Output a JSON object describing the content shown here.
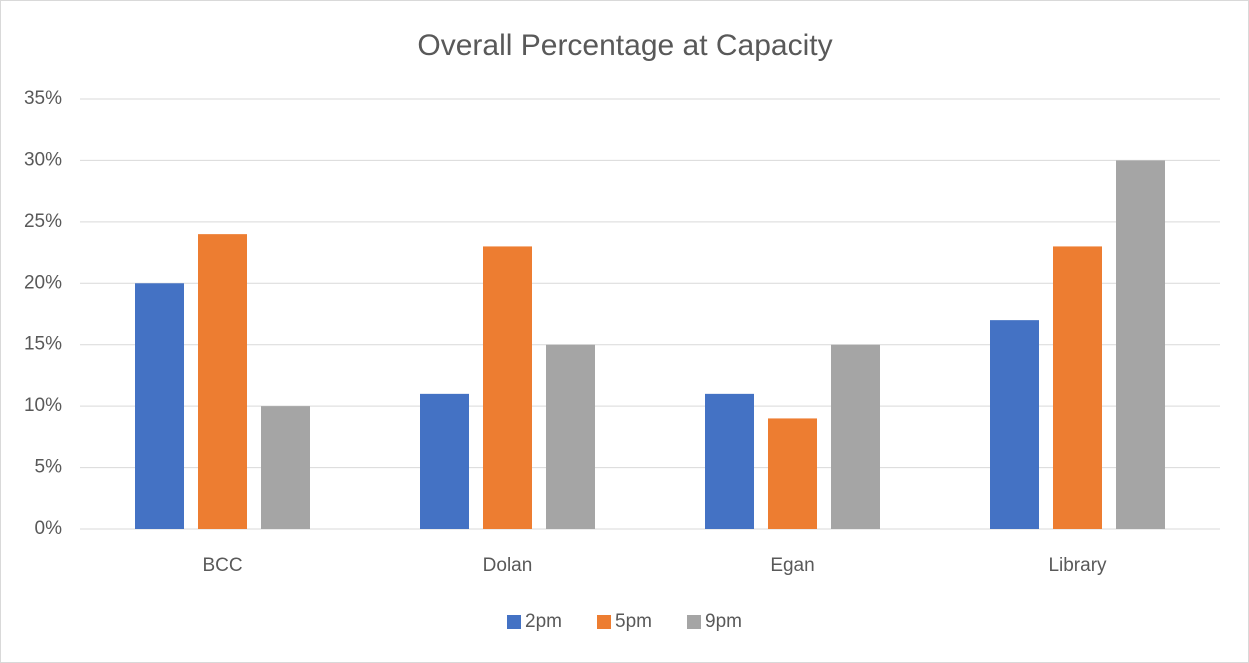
{
  "chart_data": {
    "type": "bar",
    "title": "Overall Percentage at Capacity",
    "categories": [
      "BCC",
      "Dolan",
      "Egan",
      "Library"
    ],
    "series": [
      {
        "name": "2pm",
        "color": "#4472c4",
        "values": [
          20,
          11,
          11,
          17
        ]
      },
      {
        "name": "5pm",
        "color": "#ed7d31",
        "values": [
          24,
          23,
          9,
          23
        ]
      },
      {
        "name": "9pm",
        "color": "#a5a5a5",
        "values": [
          10,
          15,
          15,
          30
        ]
      }
    ],
    "ylim": [
      0,
      35
    ],
    "yticks": [
      {
        "value": 0,
        "label": "0%"
      },
      {
        "value": 5,
        "label": "5%"
      },
      {
        "value": 10,
        "label": "10%"
      },
      {
        "value": 15,
        "label": "15%"
      },
      {
        "value": 20,
        "label": "20%"
      },
      {
        "value": 25,
        "label": "25%"
      },
      {
        "value": 30,
        "label": "30%"
      },
      {
        "value": 35,
        "label": "35%"
      }
    ],
    "grid": true,
    "legend": "bottom"
  }
}
